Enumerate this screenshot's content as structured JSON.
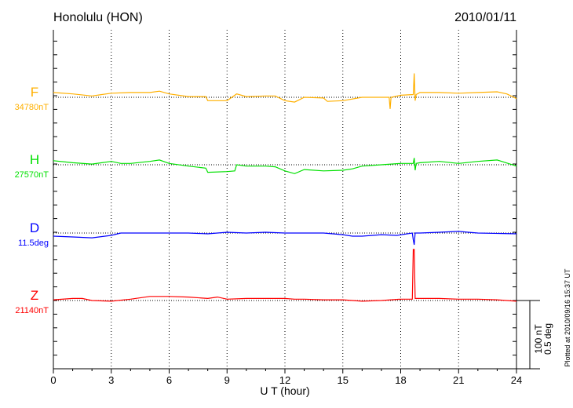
{
  "chart_data": {
    "type": "line",
    "title": "Honolulu (HON)",
    "date": "2010/01/11",
    "xlabel": "U T (hour)",
    "xlim": [
      0,
      24
    ],
    "xticks": [
      "0",
      "3",
      "6",
      "9",
      "12",
      "15",
      "18",
      "21",
      "24"
    ],
    "scale_label_nT": "100 nT",
    "scale_label_deg": "0.5 deg",
    "scale_nT": 100,
    "scale_deg": 0.5,
    "plotted_at": "Plotted at 2010/09/16 15:37 UT",
    "grid": true,
    "series": [
      {
        "name": "F",
        "baseline_label": "34780nT",
        "unit": "nT",
        "color": "#ffb000",
        "x": [
          0,
          1,
          2,
          3,
          4,
          5,
          5.5,
          6,
          7,
          7.9,
          8,
          8.5,
          9,
          9.5,
          10,
          11,
          11.5,
          12,
          12.5,
          13,
          14,
          14.2,
          15,
          16,
          17,
          17.4,
          17.45,
          17.5,
          18,
          18.65,
          18.7,
          18.75,
          18.8,
          19,
          20,
          21,
          22,
          23,
          23.5,
          24
        ],
        "y": [
          7,
          5,
          2,
          6,
          7,
          7,
          9,
          5,
          1,
          1,
          -5,
          -5,
          -5,
          5,
          1,
          2,
          2,
          -5,
          -7,
          0,
          -1,
          -6,
          -5,
          0,
          0,
          0,
          -17,
          0,
          3,
          4,
          35,
          -5,
          4,
          7,
          7,
          6,
          7,
          8,
          5,
          -2
        ]
      },
      {
        "name": "H",
        "baseline_label": "27570nT",
        "unit": "nT",
        "color": "#00e000",
        "x": [
          0,
          1,
          2,
          3,
          3.5,
          4,
          5,
          5.5,
          6,
          7,
          7.9,
          8,
          9,
          9.4,
          9.5,
          10,
          11,
          11.5,
          12,
          12.5,
          13,
          14,
          15,
          15.5,
          16,
          17,
          18,
          18.65,
          18.7,
          18.75,
          18.8,
          19,
          20,
          21,
          22,
          23,
          24
        ],
        "y": [
          6,
          3,
          1,
          5,
          2,
          2,
          5,
          7,
          2,
          -2,
          -5,
          -11,
          -10,
          -9,
          0,
          -2,
          -2,
          -3,
          -9,
          -13,
          -7,
          -9,
          -8,
          -6,
          -2,
          0,
          2,
          2,
          10,
          -8,
          2,
          3,
          5,
          2,
          5,
          7,
          -2
        ]
      },
      {
        "name": "D",
        "baseline_label": "11.5deg",
        "unit": "deg",
        "color": "#0000ff",
        "x": [
          0,
          1,
          2,
          3,
          3.5,
          5,
          7,
          8,
          9,
          10,
          11,
          12,
          13,
          14,
          15,
          15.5,
          16,
          17,
          17.8,
          18.6,
          18.65,
          18.7,
          18.75,
          19,
          20,
          21,
          21.5,
          22,
          24
        ],
        "y": [
          -0.023,
          -0.029,
          -0.035,
          -0.017,
          0,
          0,
          0,
          -0.006,
          0.006,
          0,
          0.006,
          0,
          0,
          0,
          -0.012,
          -0.023,
          -0.023,
          -0.012,
          -0.017,
          0,
          -0.05,
          -0.086,
          0,
          0,
          0.006,
          0.012,
          0.006,
          0,
          -0.006
        ]
      },
      {
        "name": "Z",
        "baseline_label": "21140nT",
        "unit": "nT",
        "color": "#ff0000",
        "x": [
          0,
          1,
          1.5,
          2,
          3,
          4,
          5,
          6,
          7,
          8,
          8.5,
          9,
          10,
          11,
          12,
          12.5,
          13,
          14,
          15,
          16,
          17,
          17.5,
          18,
          18.6,
          18.65,
          18.7,
          18.75,
          19,
          20,
          21,
          22,
          23,
          24
        ],
        "y": [
          1,
          3,
          3,
          0,
          -1,
          2,
          6,
          6,
          5,
          3,
          5,
          2,
          3,
          3,
          3,
          2,
          2,
          1,
          1,
          -1,
          0,
          1,
          2,
          2,
          75,
          75,
          3,
          3,
          3,
          2,
          2,
          1,
          -1
        ]
      }
    ]
  }
}
